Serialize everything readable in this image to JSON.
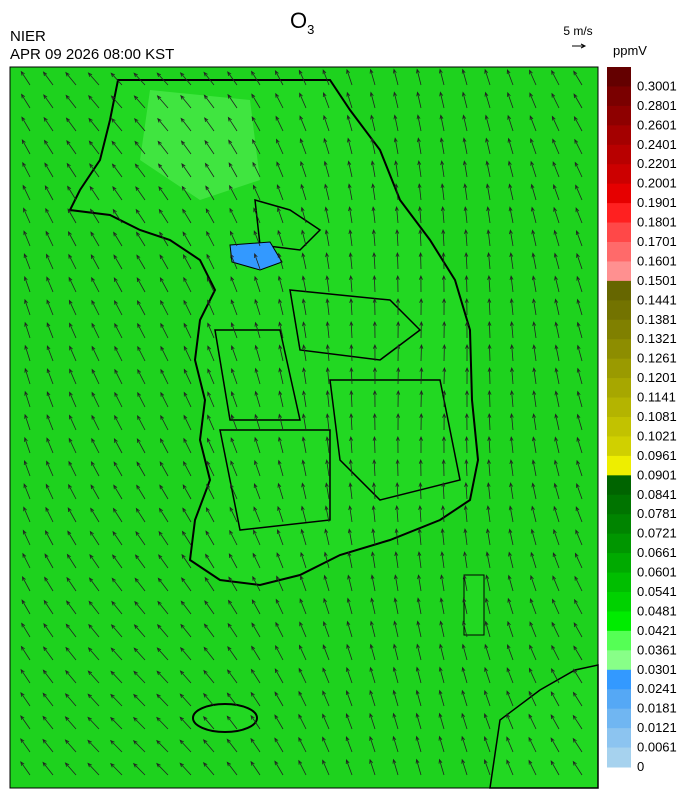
{
  "header": {
    "title": {
      "text": "O",
      "subscript": "3"
    },
    "agency": "NIER",
    "datetime": "APR 09 2026 08:00 KST"
  },
  "wind_scale": {
    "label": "5 m/s"
  },
  "colorbar": {
    "unit": "ppmV",
    "levels": [
      0.3001,
      0.2801,
      0.2601,
      0.2401,
      0.2201,
      0.2001,
      0.1901,
      0.1801,
      0.1701,
      0.1601,
      0.1501,
      0.1441,
      0.1381,
      0.1321,
      0.1261,
      0.1201,
      0.1141,
      0.1081,
      0.1021,
      0.0961,
      0.0901,
      0.0841,
      0.0781,
      0.0721,
      0.0661,
      0.0601,
      0.0541,
      0.0481,
      0.0421,
      0.0361,
      0.0301,
      0.0241,
      0.0181,
      0.0121,
      0.0061,
      0
    ],
    "colors": [
      "#640000",
      "#7a0000",
      "#8e0000",
      "#a40000",
      "#b80000",
      "#cc0000",
      "#e60000",
      "#ff2020",
      "#ff4848",
      "#ff6a6a",
      "#ff9090",
      "#666600",
      "#737300",
      "#808000",
      "#8d8d00",
      "#9a9a00",
      "#a7a700",
      "#b4b400",
      "#c2c200",
      "#d0d000",
      "#eeee00",
      "#006400",
      "#007400",
      "#008400",
      "#009600",
      "#00aa00",
      "#00be00",
      "#00d200",
      "#00ec00",
      "#55ff55",
      "#88ff88",
      "#3399ff",
      "#55a8f5",
      "#70b6f2",
      "#8cc4f0",
      "#a6d2ee"
    ]
  }
}
